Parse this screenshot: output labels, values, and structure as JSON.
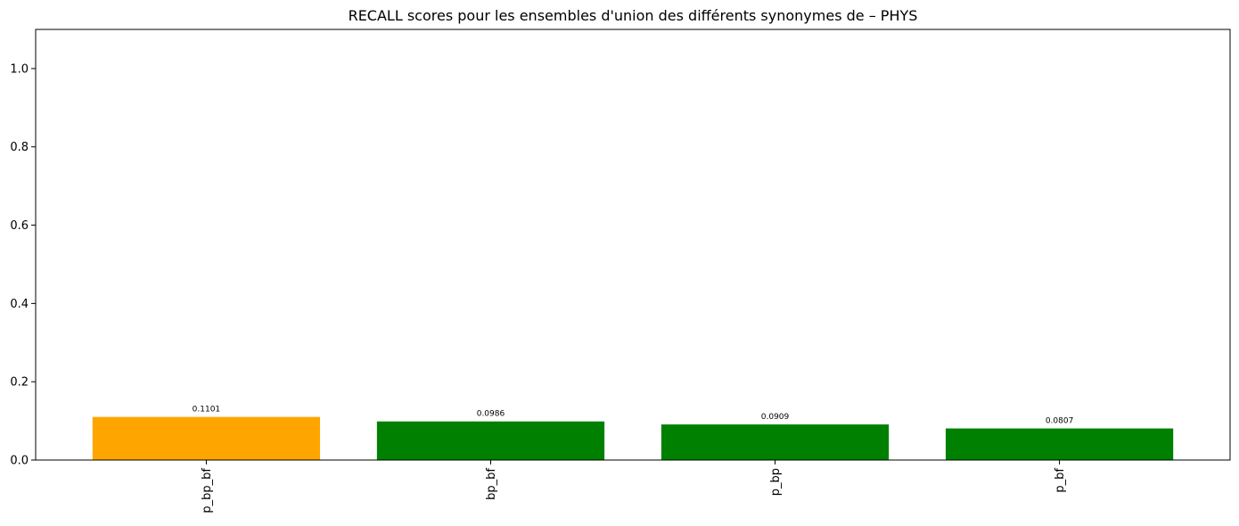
{
  "chart_data": {
    "type": "bar",
    "title": "RECALL scores pour les ensembles d'union des différents synonymes de – PHYS",
    "xlabel": "",
    "ylabel": "",
    "categories": [
      "p_bp_bf",
      "bp_bf",
      "p_bp",
      "p_bf"
    ],
    "values": [
      0.1101,
      0.0986,
      0.0909,
      0.0807
    ],
    "data_labels": [
      "0.1101",
      "0.0986",
      "0.0909",
      "0.0807"
    ],
    "bar_colors": [
      "#FFA500",
      "#008000",
      "#008000",
      "#008000"
    ],
    "ylim": [
      0,
      1.1
    ],
    "yticks": [
      0.0,
      0.2,
      0.4,
      0.6,
      0.8,
      1.0
    ],
    "ytick_labels": [
      "0.0",
      "0.2",
      "0.4",
      "0.6",
      "0.8",
      "1.0"
    ],
    "grid": false,
    "legend": "none"
  }
}
